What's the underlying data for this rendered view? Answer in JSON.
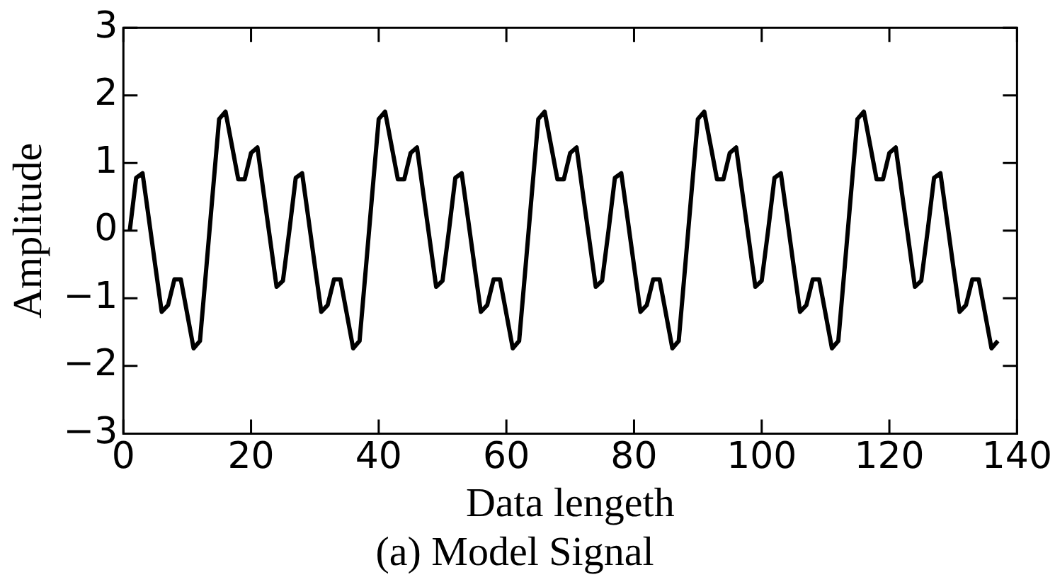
{
  "chart_data": {
    "type": "line",
    "title": "(a) Model Signal",
    "xlabel": "Data lengeth",
    "ylabel": "Amplitude",
    "x": [
      1,
      2,
      3,
      4,
      5,
      6,
      7,
      8,
      9,
      10,
      11,
      12,
      13,
      14,
      15,
      16,
      17,
      18,
      19,
      20,
      21,
      22,
      23,
      24,
      25,
      26,
      27,
      28,
      29,
      30,
      31,
      32,
      33,
      34,
      35,
      36,
      37,
      38,
      39,
      40,
      41,
      42,
      43,
      44,
      45,
      46,
      47,
      48,
      49,
      50,
      51,
      52,
      53,
      54,
      55,
      56,
      57,
      58,
      59,
      60,
      61,
      62,
      63,
      64,
      65,
      66,
      67,
      68,
      69,
      70,
      71,
      72,
      73,
      74,
      75,
      76,
      77,
      78,
      79,
      80,
      81,
      82,
      83,
      84,
      85,
      86,
      87,
      88,
      89,
      90,
      91,
      92,
      93,
      94,
      95,
      96,
      97,
      98,
      99,
      100,
      101,
      102,
      103,
      104,
      105,
      106,
      107,
      108,
      109,
      110,
      111,
      112,
      113,
      114,
      115,
      116,
      117,
      118,
      119,
      120,
      121,
      122,
      123,
      124,
      125,
      126,
      127,
      128,
      129,
      130,
      131,
      132,
      133,
      134,
      135,
      136,
      137
    ],
    "series": [
      {
        "color": "#000000",
        "values": [
          0,
          0.78,
          0.85,
          0.17,
          -0.52,
          -1.2,
          -1.1,
          -0.72,
          -0.72,
          -1.23,
          -1.74,
          -1.63,
          -0.54,
          0.56,
          1.65,
          1.76,
          1.26,
          0.76,
          0.76,
          1.15,
          1.23,
          0.54,
          -0.14,
          -0.83,
          -0.74,
          0,
          0.78,
          0.85,
          0.17,
          -0.52,
          -1.2,
          -1.1,
          -0.72,
          -0.72,
          -1.23,
          -1.74,
          -1.63,
          -0.54,
          0.56,
          1.65,
          1.76,
          1.26,
          0.76,
          0.76,
          1.15,
          1.23,
          0.54,
          -0.14,
          -0.83,
          -0.74,
          0,
          0.78,
          0.85,
          0.17,
          -0.52,
          -1.2,
          -1.1,
          -0.72,
          -0.72,
          -1.23,
          -1.74,
          -1.63,
          -0.54,
          0.56,
          1.65,
          1.76,
          1.26,
          0.76,
          0.76,
          1.15,
          1.23,
          0.54,
          -0.14,
          -0.83,
          -0.74,
          0,
          0.78,
          0.85,
          0.17,
          -0.52,
          -1.2,
          -1.1,
          -0.72,
          -0.72,
          -1.23,
          -1.74,
          -1.63,
          -0.54,
          0.56,
          1.65,
          1.76,
          1.26,
          0.76,
          0.76,
          1.15,
          1.23,
          0.54,
          -0.14,
          -0.83,
          -0.74,
          0,
          0.78,
          0.85,
          0.17,
          -0.52,
          -1.2,
          -1.1,
          -0.72,
          -0.72,
          -1.23,
          -1.74,
          -1.63,
          -0.54,
          0.56,
          1.65,
          1.76,
          1.26,
          0.76,
          0.76,
          1.15,
          1.23,
          0.54,
          -0.14,
          -0.83,
          -0.74,
          0,
          0.78,
          0.85,
          0.17,
          -0.52,
          -1.2,
          -1.1,
          -0.72,
          -0.72,
          -1.23,
          -1.74,
          -1.63
        ]
      }
    ],
    "xlim": [
      0,
      140
    ],
    "xticks": [
      0,
      20,
      40,
      60,
      80,
      100,
      120,
      140
    ],
    "ylim": [
      -3,
      3
    ],
    "yticks": [
      {
        "value": -3,
        "label": "−3"
      },
      {
        "value": -2,
        "label": "−2"
      },
      {
        "value": -1,
        "label": "−1"
      },
      0,
      1,
      2,
      3
    ],
    "legend": false,
    "marker": "none",
    "line_style": "solid"
  }
}
